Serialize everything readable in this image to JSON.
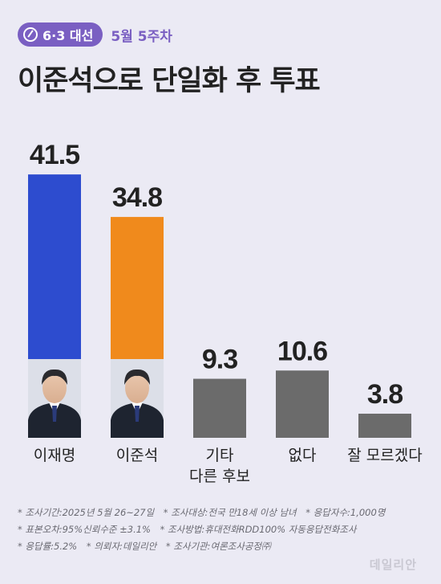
{
  "header": {
    "badge": "6·3 대선",
    "week": "5월 5주차"
  },
  "title": "이준석으로 단일화 후 투표",
  "chart_data": {
    "type": "bar",
    "categories": [
      "이재명",
      "이준석",
      "기타\n다른 후보",
      "없다",
      "잘 모르겠다"
    ],
    "values": [
      41.5,
      34.8,
      9.3,
      10.6,
      3.8
    ],
    "colors": [
      "#2d4ccf",
      "#f08a1c",
      "#6b6b6b",
      "#6b6b6b",
      "#6b6b6b"
    ],
    "ylim": [
      0,
      45
    ]
  },
  "notes": [
    "* 조사기간:2025년 5월 26~27일",
    "* 조사대상:전국 만18세 이상 남녀",
    "* 응답자수:1,000명",
    "* 표본오차:95%신뢰수준 ±3.1%",
    "* 조사방법:휴대전화RDD100% 자동응답전화조사",
    "* 응답률:5.2%",
    "* 의뢰자:데일리안",
    "* 조사기관:여론조사공정㈜"
  ],
  "watermark": "데일리안"
}
